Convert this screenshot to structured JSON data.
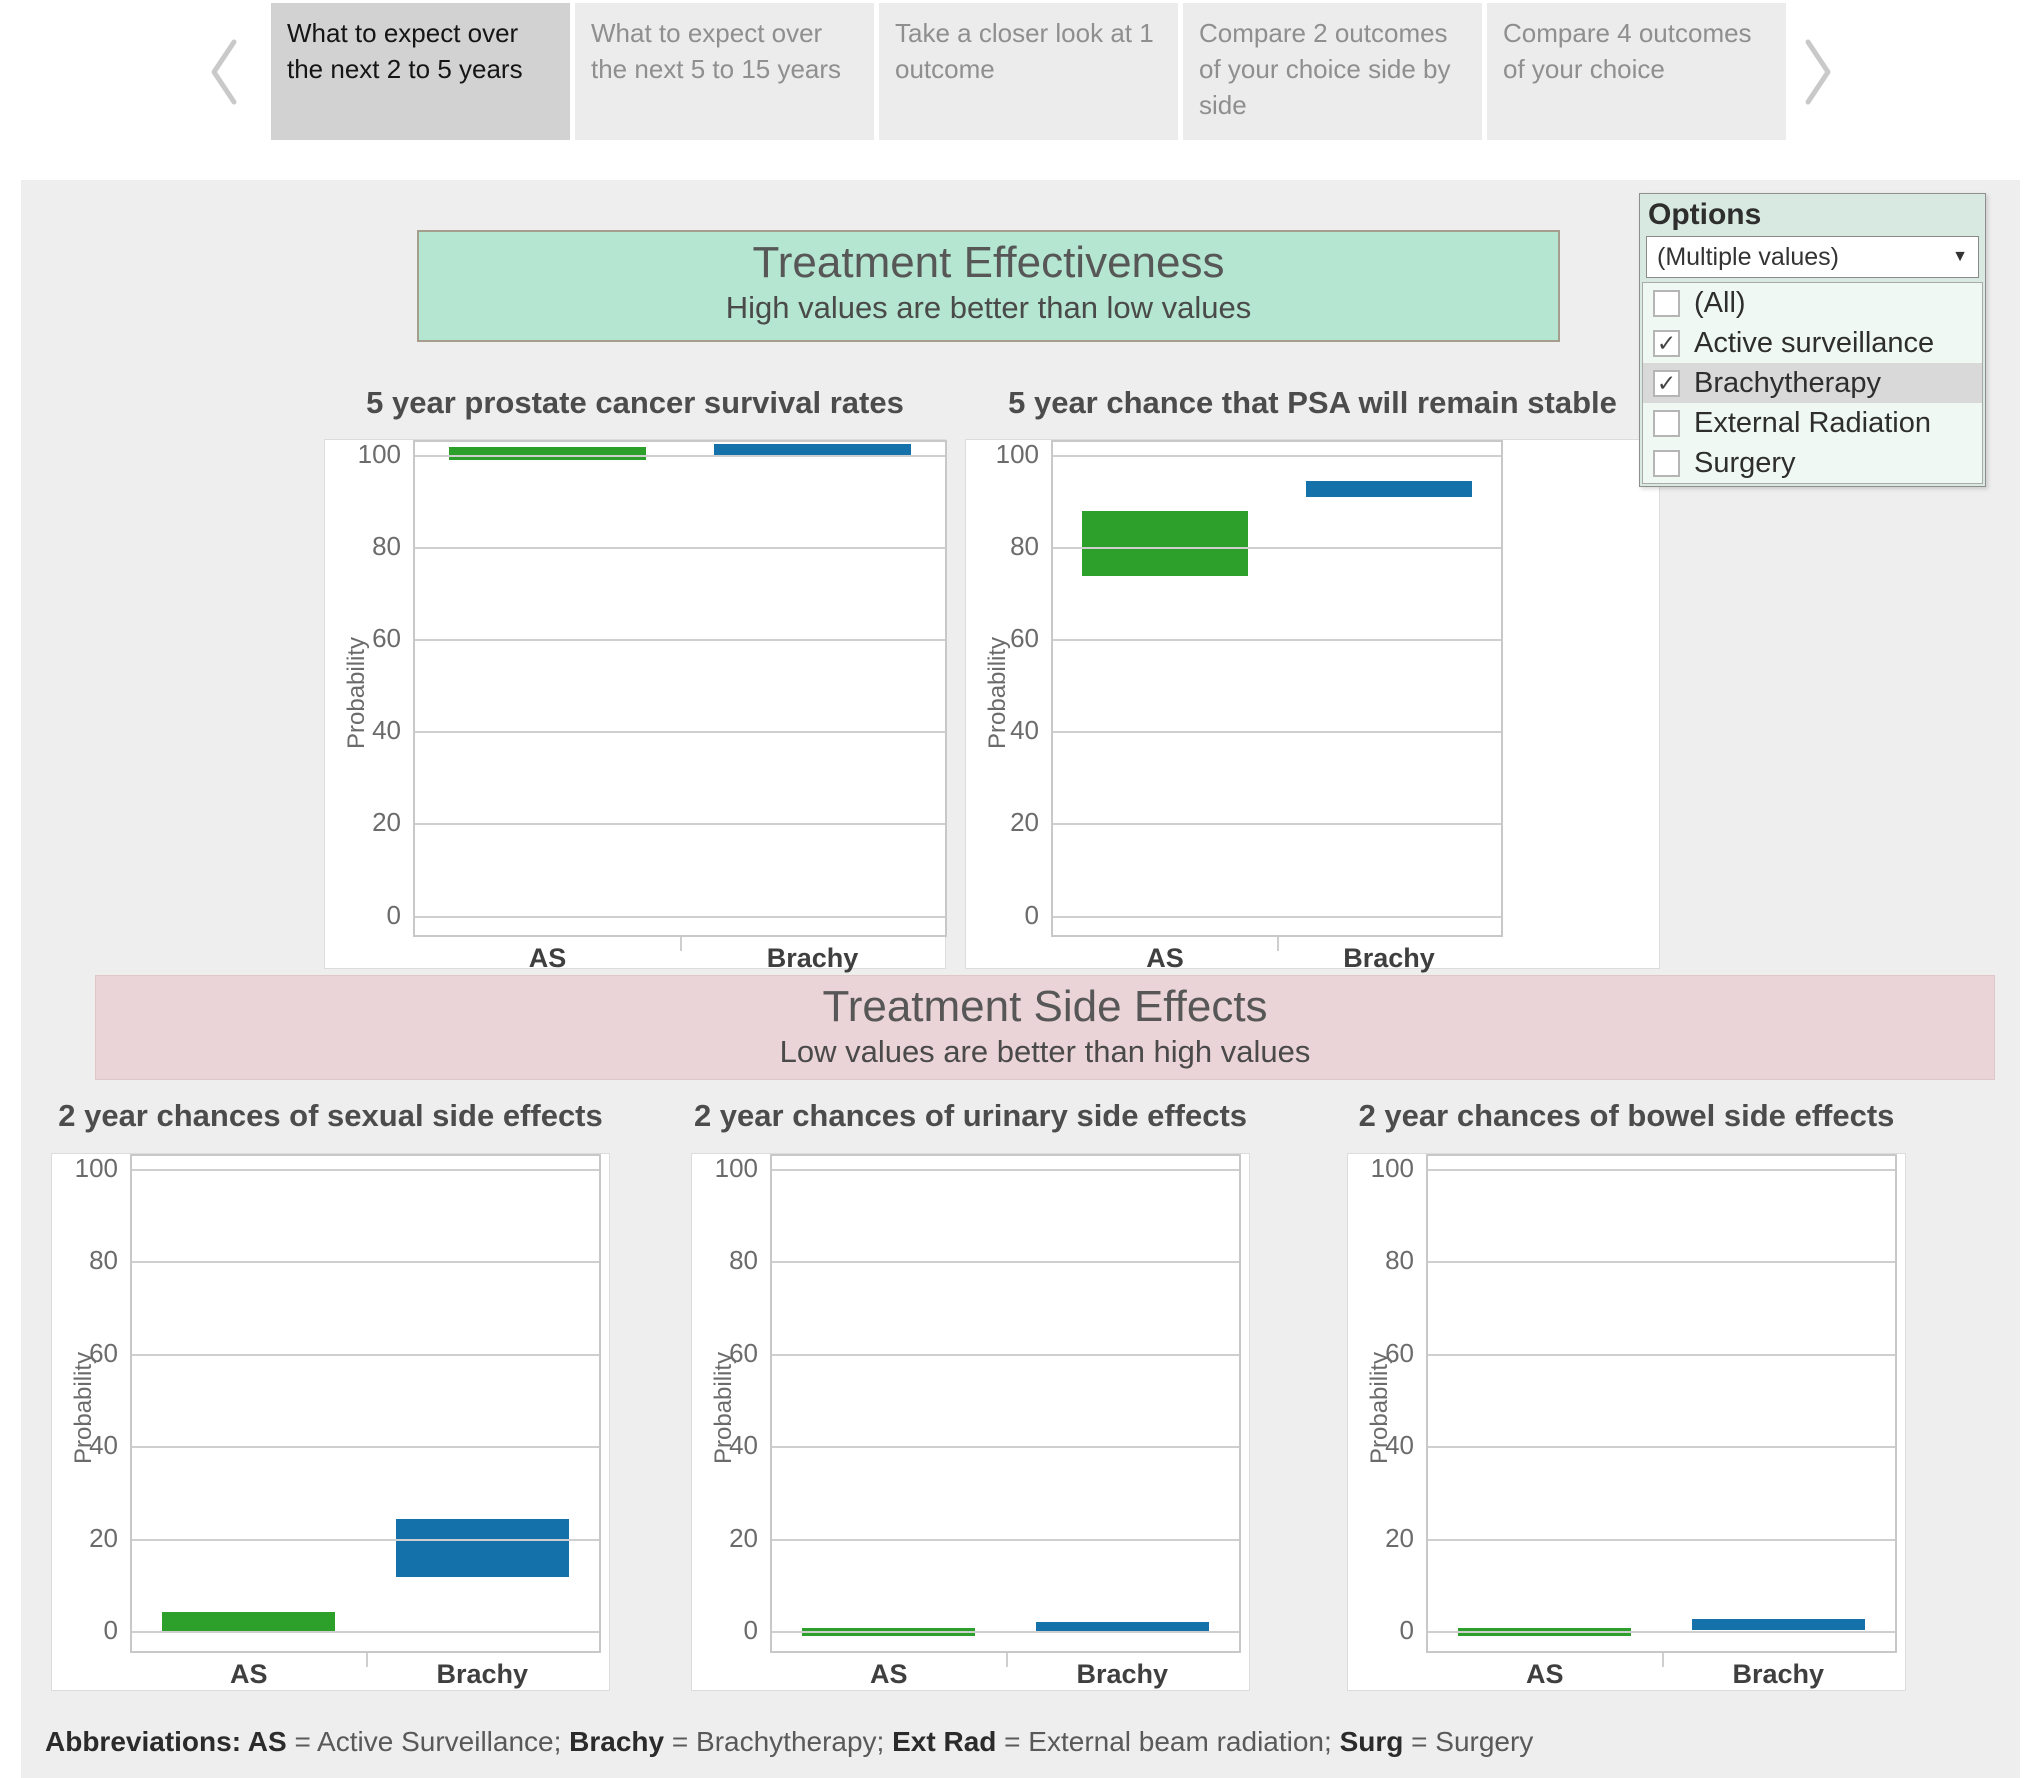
{
  "tabs": {
    "items": [
      {
        "label": "What to expect over the next 2 to 5 years",
        "active": true
      },
      {
        "label": "What to expect over the next 5 to 15 years",
        "active": false
      },
      {
        "label": "Take a closer look at 1 outcome",
        "active": false
      },
      {
        "label": "Compare 2 outcomes of your choice side by side",
        "active": false
      },
      {
        "label": "Compare 4 outcomes of your choice",
        "active": false
      }
    ]
  },
  "banners": {
    "effectiveness": {
      "title": "Treatment Effectiveness",
      "subtitle": "High values are better than low values",
      "bg": "#b4e6d1"
    },
    "side_effects": {
      "title": "Treatment Side Effects",
      "subtitle": "Low values are better than high values",
      "bg": "#ebd4d7"
    }
  },
  "options": {
    "title": "Options",
    "dropdown_value": "(Multiple values)",
    "items": [
      {
        "label": "(All)",
        "checked": false,
        "highlighted": false
      },
      {
        "label": "Active surveillance",
        "checked": true,
        "highlighted": false
      },
      {
        "label": "Brachytherapy",
        "checked": true,
        "highlighted": true
      },
      {
        "label": "External Radiation",
        "checked": false,
        "highlighted": false
      },
      {
        "label": "Surgery",
        "checked": false,
        "highlighted": false
      }
    ]
  },
  "colors": {
    "active_surveillance": "#2da02b",
    "brachytherapy": "#1571a9",
    "gridline": "#cfcfcf"
  },
  "chart_data": [
    {
      "type": "bar",
      "title": "5 year prostate cancer survival rates",
      "ylabel": "Probability",
      "categories": [
        "AS",
        "Brachy"
      ],
      "ylim": [
        -4,
        103
      ],
      "yticks": [
        0,
        20,
        40,
        60,
        80,
        100
      ],
      "bars": [
        {
          "category": "AS",
          "treatment": "Active surveillance",
          "color": "#2da02b",
          "low": 99,
          "high": 102
        },
        {
          "category": "Brachy",
          "treatment": "Brachytherapy",
          "color": "#1571a9",
          "low": 100,
          "high": 102.5
        }
      ]
    },
    {
      "type": "bar",
      "title": "5 year chance that PSA will remain stable",
      "ylabel": "Probability",
      "categories": [
        "AS",
        "Brachy"
      ],
      "ylim": [
        -4,
        103
      ],
      "yticks": [
        0,
        20,
        40,
        60,
        80,
        100
      ],
      "bars": [
        {
          "category": "AS",
          "treatment": "Active surveillance",
          "color": "#2da02b",
          "low": 74,
          "high": 88
        },
        {
          "category": "Brachy",
          "treatment": "Brachytherapy",
          "color": "#1571a9",
          "low": 91,
          "high": 94.5
        }
      ]
    },
    {
      "type": "bar",
      "title": "2 year chances of sexual side effects",
      "ylabel": "Probability",
      "categories": [
        "AS",
        "Brachy"
      ],
      "ylim": [
        -4,
        103
      ],
      "yticks": [
        0,
        20,
        40,
        60,
        80,
        100
      ],
      "bars": [
        {
          "category": "AS",
          "treatment": "Active surveillance",
          "color": "#2da02b",
          "low": 0,
          "high": 4.5
        },
        {
          "category": "Brachy",
          "treatment": "Brachytherapy",
          "color": "#1571a9",
          "low": 12,
          "high": 24.5
        }
      ]
    },
    {
      "type": "bar",
      "title": "2 year chances of urinary side effects",
      "ylabel": "Probability",
      "categories": [
        "AS",
        "Brachy"
      ],
      "ylim": [
        -4,
        103
      ],
      "yticks": [
        0,
        20,
        40,
        60,
        80,
        100
      ],
      "bars": [
        {
          "category": "AS",
          "treatment": "Active surveillance",
          "color": "#2da02b",
          "low": 0,
          "high": 1
        },
        {
          "category": "Brachy",
          "treatment": "Brachytherapy",
          "color": "#1571a9",
          "low": 0,
          "high": 2.2
        }
      ]
    },
    {
      "type": "bar",
      "title": "2 year chances of bowel side effects",
      "ylabel": "Probability",
      "categories": [
        "AS",
        "Brachy"
      ],
      "ylim": [
        -4,
        103
      ],
      "yticks": [
        0,
        20,
        40,
        60,
        80,
        100
      ],
      "bars": [
        {
          "category": "AS",
          "treatment": "Active surveillance",
          "color": "#2da02b",
          "low": 0,
          "high": 1
        },
        {
          "category": "Brachy",
          "treatment": "Brachytherapy",
          "color": "#1571a9",
          "low": 0.5,
          "high": 3
        }
      ]
    }
  ],
  "abbreviations": {
    "label": "Abbreviations:",
    "items": [
      {
        "abbr": "AS",
        "full": "Active Surveillance"
      },
      {
        "abbr": "Brachy",
        "full": "Brachytherapy"
      },
      {
        "abbr": "Ext Rad",
        "full": "External beam radiation"
      },
      {
        "abbr": "Surg",
        "full": "Surgery"
      }
    ]
  }
}
